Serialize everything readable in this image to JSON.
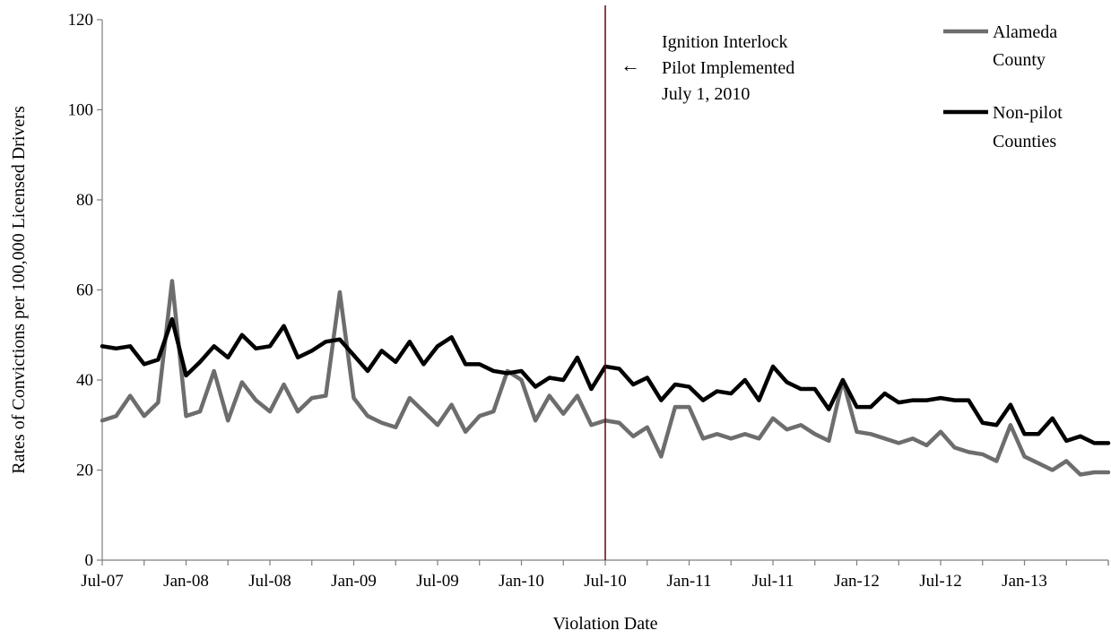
{
  "chart_data": {
    "type": "line",
    "title": "",
    "xlabel": "Violation Date",
    "ylabel": "Rates of Convictions per 100,000 Licensed Drivers",
    "ylim": [
      0,
      120
    ],
    "yticks": [
      0,
      20,
      40,
      60,
      80,
      100,
      120
    ],
    "xlim": [
      "Jul-07",
      "Dec-13"
    ],
    "xtick_labels": [
      "Jul-07",
      "Jan-08",
      "Jul-08",
      "Jan-09",
      "Jul-09",
      "Jan-10",
      "Jul-10",
      "Jan-11",
      "Jul-11",
      "Jan-12",
      "Jul-12",
      "Jan-13"
    ],
    "grid": false,
    "legend_position": "top-right",
    "x": [
      "Jul-07",
      "Aug-07",
      "Sep-07",
      "Oct-07",
      "Nov-07",
      "Dec-07",
      "Jan-08",
      "Feb-08",
      "Mar-08",
      "Apr-08",
      "May-08",
      "Jun-08",
      "Jul-08",
      "Aug-08",
      "Sep-08",
      "Oct-08",
      "Nov-08",
      "Dec-08",
      "Jan-09",
      "Feb-09",
      "Mar-09",
      "Apr-09",
      "May-09",
      "Jun-09",
      "Jul-09",
      "Aug-09",
      "Sep-09",
      "Oct-09",
      "Nov-09",
      "Dec-09",
      "Jan-10",
      "Feb-10",
      "Mar-10",
      "Apr-10",
      "May-10",
      "Jun-10",
      "Jul-10",
      "Aug-10",
      "Sep-10",
      "Oct-10",
      "Nov-10",
      "Dec-10",
      "Jan-11",
      "Feb-11",
      "Mar-11",
      "Apr-11",
      "May-11",
      "Jun-11",
      "Jul-11",
      "Aug-11",
      "Sep-11",
      "Oct-11",
      "Nov-11",
      "Dec-11",
      "Jan-12",
      "Feb-12",
      "Mar-12",
      "Apr-12",
      "May-12",
      "Jun-12",
      "Jul-12",
      "Aug-12",
      "Sep-12",
      "Oct-12",
      "Nov-12",
      "Dec-12",
      "Jan-13",
      "Feb-13",
      "Mar-13",
      "Apr-13",
      "May-13",
      "Jun-13",
      "Jul-13"
    ],
    "series": [
      {
        "name": "Alameda County",
        "color": "#6d6d6d",
        "values": [
          31,
          32,
          36.5,
          32,
          35,
          62,
          32,
          33,
          42,
          31,
          39.5,
          35.5,
          33,
          39,
          33,
          36,
          36.5,
          59.5,
          36,
          32,
          30.5,
          29.5,
          36,
          33,
          30,
          34.5,
          28.5,
          32,
          33,
          42,
          40,
          31,
          36.5,
          32.5,
          36.5,
          30,
          31,
          30.5,
          27.5,
          29.5,
          23,
          34,
          34,
          27,
          28,
          27,
          28,
          27,
          31.5,
          29,
          30,
          28,
          26.5,
          40,
          28.5,
          28,
          27,
          26,
          27,
          25.5,
          28.5,
          25,
          24,
          23.5,
          22,
          30,
          23,
          21.5,
          20,
          22,
          19,
          19.5,
          19.5
        ]
      },
      {
        "name": "Non-pilot Counties",
        "color": "#000000",
        "values": [
          47.5,
          47,
          47.5,
          43.5,
          44.5,
          53.5,
          41,
          44,
          47.5,
          45,
          50,
          47,
          47.5,
          52,
          45,
          46.5,
          48.5,
          49,
          45.5,
          42,
          46.5,
          44,
          48.5,
          43.5,
          47.5,
          49.5,
          43.5,
          43.5,
          42,
          41.5,
          42,
          38.5,
          40.5,
          40,
          45,
          38,
          43,
          42.5,
          39,
          40.5,
          35.5,
          39,
          38.5,
          35.5,
          37.5,
          37,
          40,
          35.5,
          43,
          39.5,
          38,
          38,
          33.5,
          40,
          34,
          34,
          37,
          35,
          35.5,
          35.5,
          36,
          35.5,
          35.5,
          30.5,
          30,
          34.5,
          28,
          28,
          31.5,
          26.5,
          27.5,
          26,
          26
        ]
      }
    ],
    "annotation": {
      "x": "Jul-10",
      "lines": [
        "Ignition Interlock",
        "Pilot Implemented",
        "July 1, 2010"
      ],
      "arrow": "←",
      "line_color": "#5a0a10"
    }
  }
}
